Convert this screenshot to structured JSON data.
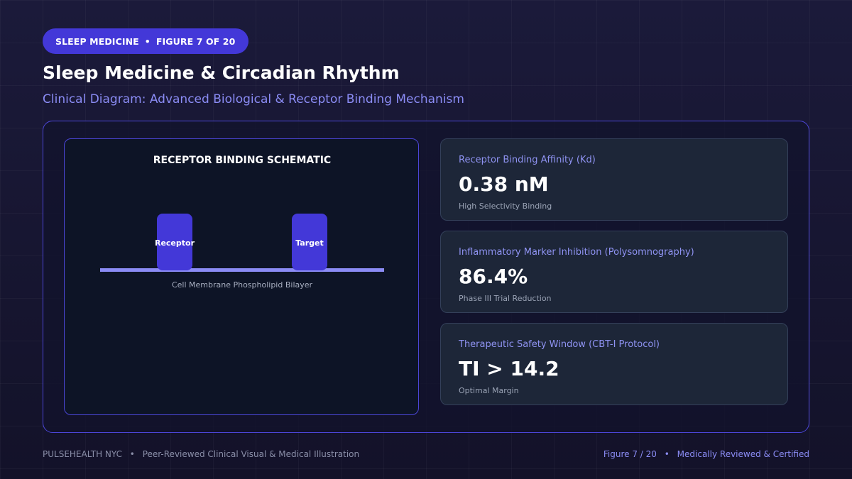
{
  "header": {
    "badge_section": "SLEEP MEDICINE",
    "badge_separator": "•",
    "badge_figure": "FIGURE 7 OF 20",
    "title": "Sleep Medicine & Circadian Rhythm",
    "subtitle": "Clinical Diagram: Advanced Biological & Receptor Binding Mechanism"
  },
  "diagram": {
    "title": "RECEPTOR BINDING SCHEMATIC",
    "receptor_label": "Receptor",
    "target_label": "Target",
    "membrane_label": "Cell Membrane Phospholipid Bilayer"
  },
  "metrics": [
    {
      "label": "Receptor Binding Affinity (Kd)",
      "value": "0.38 nM",
      "note": "High Selectivity Binding"
    },
    {
      "label": "Inflammatory Marker Inhibition (Polysomnography)",
      "value": "86.4%",
      "note": "Phase III Trial Reduction"
    },
    {
      "label": "Therapeutic Safety Window (CBT-I Protocol)",
      "value": "TI > 14.2",
      "note": "Optimal Margin"
    }
  ],
  "footer": {
    "brand": "PULSEHEALTH NYC",
    "separator": "•",
    "tagline": "Peer-Reviewed Clinical Visual & Medical Illustration",
    "figure": "Figure 7 / 20",
    "certification": "Medically Reviewed & Certified"
  },
  "colors": {
    "accent": "#4338d8",
    "accent_text": "#8b8cf5",
    "membrane": "#8b8cf5",
    "background": "#161530"
  }
}
